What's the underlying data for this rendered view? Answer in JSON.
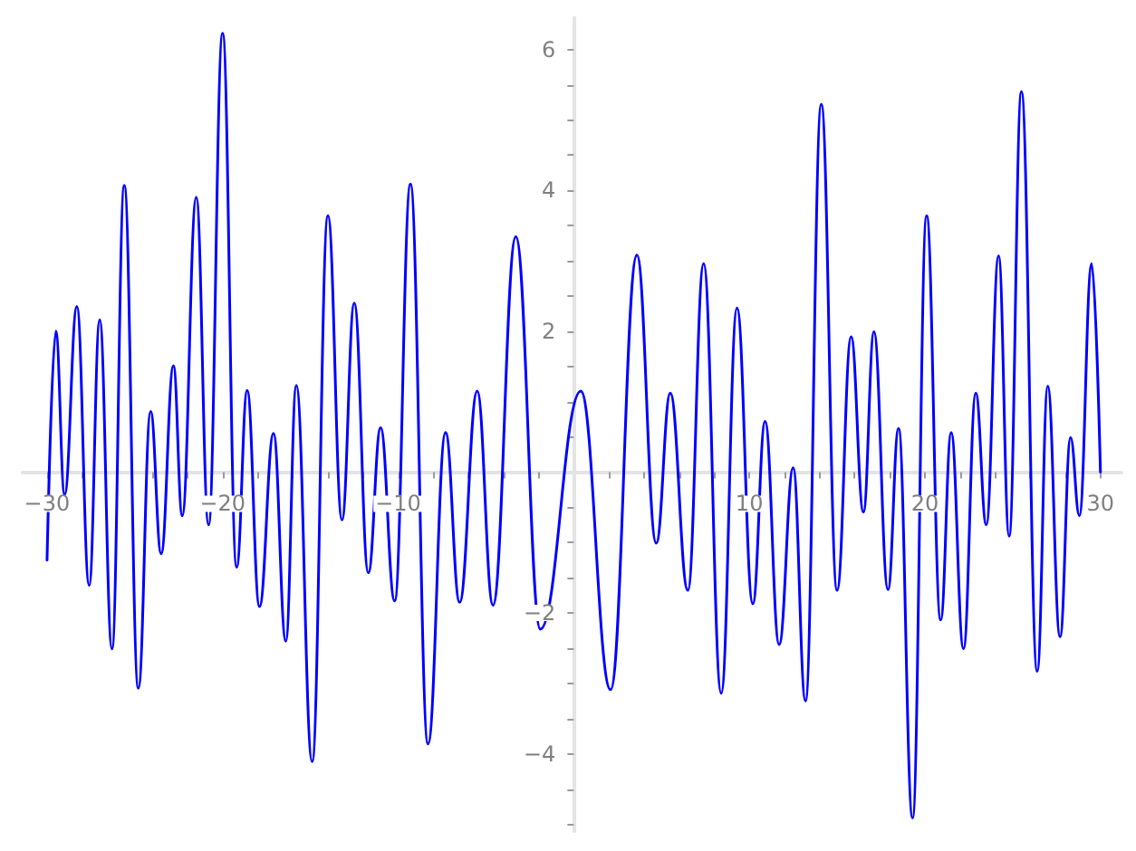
{
  "chart_data": {
    "type": "line",
    "color": "#0000ff",
    "marker": "none",
    "x": [
      -30,
      -29.5,
      -29.0,
      -28.3,
      -27.6,
      -27.0,
      -26.3,
      -25.6,
      -24.8,
      -24.1,
      -23.5,
      -22.8,
      -22.3,
      -21.5,
      -20.8,
      -20.0,
      -19.2,
      -18.6,
      -17.9,
      -17.1,
      -16.4,
      -15.8,
      -14.9,
      -14.0,
      -13.2,
      -12.5,
      -11.7,
      -11.0,
      -10.2,
      -9.3,
      -8.3,
      -7.3,
      -6.5,
      -5.5,
      -4.6,
      -3.3,
      -1.9,
      0.4,
      2.1,
      3.6,
      4.7,
      5.5,
      6.5,
      7.4,
      8.4,
      9.3,
      10.2,
      10.9,
      11.7,
      12.5,
      13.2,
      14.1,
      15.0,
      15.8,
      16.5,
      17.1,
      17.9,
      18.5,
      19.3,
      20.1,
      20.9,
      21.5,
      22.2,
      22.9,
      23.5,
      24.2,
      24.8,
      25.5,
      26.4,
      27.0,
      27.7,
      28.3,
      28.8,
      29.5,
      30
    ],
    "values": [
      -1.25,
      2.0,
      -0.32,
      2.35,
      -1.61,
      2.16,
      -2.51,
      4.07,
      -3.07,
      0.86,
      -1.16,
      1.51,
      -0.62,
      3.9,
      -0.75,
      6.23,
      -1.35,
      1.16,
      -1.91,
      0.55,
      -2.4,
      1.23,
      -4.11,
      3.64,
      -0.68,
      2.4,
      -1.43,
      0.63,
      -1.83,
      4.09,
      -3.86,
      0.56,
      -1.85,
      1.15,
      -1.89,
      3.34,
      -2.23,
      1.15,
      -3.09,
      3.08,
      -1.01,
      1.12,
      -1.68,
      2.96,
      -3.14,
      2.33,
      -1.87,
      0.72,
      -2.45,
      0.06,
      -3.25,
      5.22,
      -1.68,
      1.92,
      -0.57,
      1.99,
      -1.67,
      0.62,
      -4.91,
      3.64,
      -2.1,
      0.56,
      -2.51,
      1.12,
      -0.75,
      3.07,
      -0.91,
      5.4,
      -2.83,
      1.22,
      -2.34,
      0.49,
      -0.62,
      2.96,
      0
    ],
    "xlim": [
      -31.4,
      31.2
    ],
    "xticks": [
      {
        "value": -30,
        "label": "−30"
      },
      {
        "value": -28,
        "label": null
      },
      {
        "value": -26,
        "label": null
      },
      {
        "value": -24,
        "label": null
      },
      {
        "value": -22,
        "label": null
      },
      {
        "value": -20,
        "label": "−20"
      },
      {
        "value": -18,
        "label": null
      },
      {
        "value": -16,
        "label": null
      },
      {
        "value": -14,
        "label": null
      },
      {
        "value": -12,
        "label": null
      },
      {
        "value": -10,
        "label": "−10"
      },
      {
        "value": -8,
        "label": null
      },
      {
        "value": -6,
        "label": null
      },
      {
        "value": -4,
        "label": null
      },
      {
        "value": -2,
        "label": null
      },
      {
        "value": 2,
        "label": null
      },
      {
        "value": 4,
        "label": null
      },
      {
        "value": 6,
        "label": null
      },
      {
        "value": 8,
        "label": null
      },
      10,
      {
        "value": 12,
        "label": null
      },
      {
        "value": 14,
        "label": null
      },
      {
        "value": 16,
        "label": null
      },
      {
        "value": 18,
        "label": null
      },
      20,
      {
        "value": 22,
        "label": null
      },
      {
        "value": 24,
        "label": null
      },
      {
        "value": 26,
        "label": null
      },
      {
        "value": 28,
        "label": null
      },
      30
    ],
    "ylim": [
      -5.1,
      6.45
    ],
    "yticks": [
      {
        "value": -5,
        "label": null
      },
      {
        "value": -4.5,
        "label": null
      },
      {
        "value": -4,
        "label": "−4"
      },
      {
        "value": -3.5,
        "label": null
      },
      {
        "value": -3,
        "label": null
      },
      {
        "value": -2.5,
        "label": null
      },
      {
        "value": -2,
        "label": "−2"
      },
      {
        "value": -1.5,
        "label": null
      },
      {
        "value": -1,
        "label": null
      },
      {
        "value": -0.5,
        "label": null
      },
      {
        "value": 0.5,
        "label": null
      },
      {
        "value": 1,
        "label": null
      },
      {
        "value": 1.5,
        "label": null
      },
      2,
      {
        "value": 2.5,
        "label": null
      },
      {
        "value": 3,
        "label": null
      },
      {
        "value": 3.5,
        "label": null
      },
      4,
      {
        "value": 4.5,
        "label": null
      },
      {
        "value": 5,
        "label": null
      },
      {
        "value": 5.5,
        "label": null
      },
      6
    ]
  }
}
